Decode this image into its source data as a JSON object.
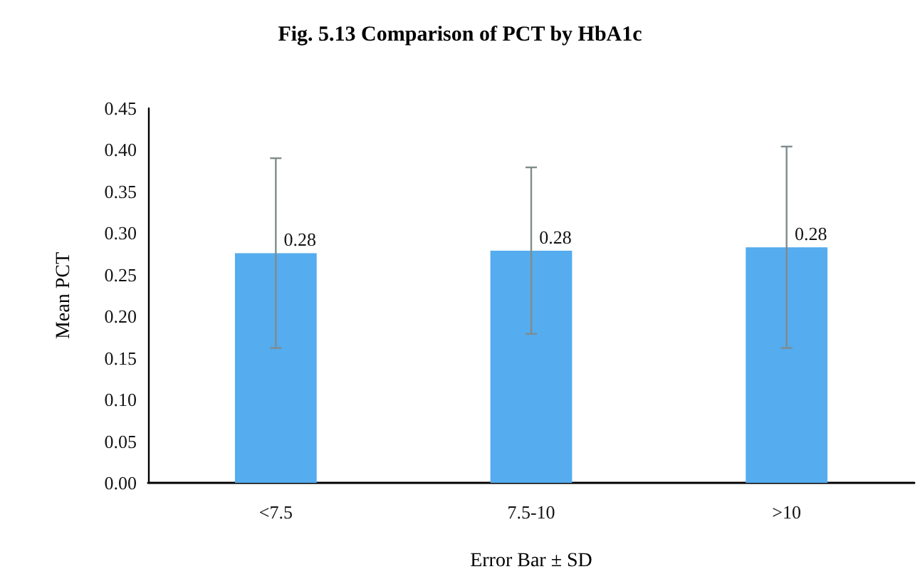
{
  "chart_data": {
    "type": "bar",
    "title": "Fig. 5.13 Comparison of PCT by HbA1c",
    "xlabel": "Error Bar ± SD",
    "ylabel": "Mean PCT",
    "categories": [
      "<7.5",
      "7.5-10",
      ">10"
    ],
    "values": [
      0.276,
      0.279,
      0.283
    ],
    "errors": [
      0.114,
      0.1,
      0.121
    ],
    "value_labels": [
      "0.28",
      "0.28",
      "0.28"
    ],
    "color": "#55acee",
    "ylim": [
      0,
      0.45
    ],
    "yticks": [
      {
        "value": 0,
        "label": "0.00"
      },
      0.05,
      {
        "value": 0.1,
        "label": "0.10"
      },
      0.15,
      {
        "value": 0.2,
        "label": "0.20"
      },
      0.25,
      {
        "value": 0.3,
        "label": "0.30"
      },
      0.35,
      {
        "value": 0.4,
        "label": "0.40"
      },
      0.45
    ],
    "grid": false
  }
}
